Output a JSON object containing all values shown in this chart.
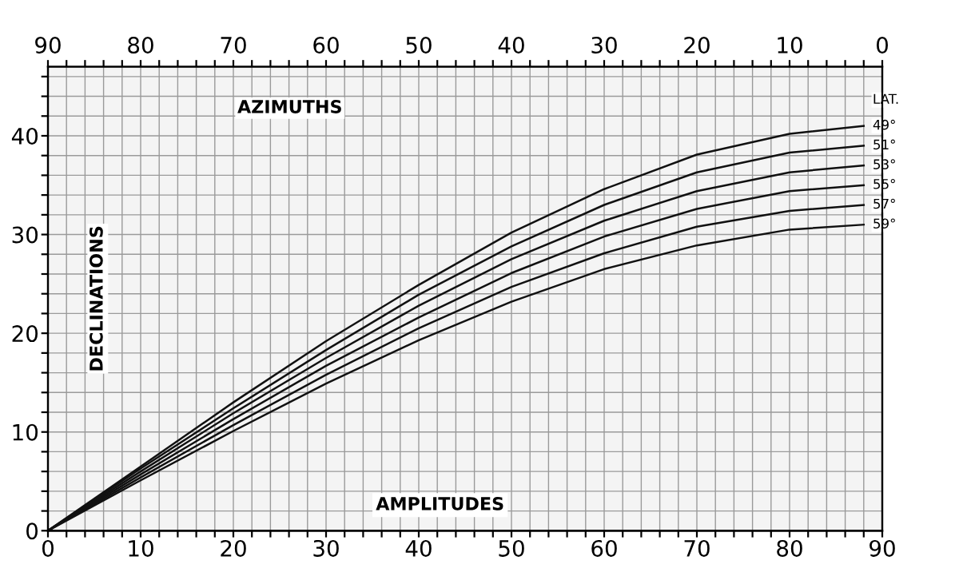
{
  "chart_data": {
    "type": "line",
    "xlabel": "AMPLITUDES",
    "ylabel": "DECLINATIONS",
    "x2label": "AZIMUTHS",
    "legend_title": "LAT.",
    "x": [
      0,
      10,
      20,
      30,
      40,
      50,
      60,
      70,
      80,
      88
    ],
    "series": [
      {
        "name": "49°",
        "color": "#111111",
        "values": [
          0,
          6.5,
          13.0,
          19.2,
          24.9,
          30.2,
          34.6,
          38.1,
          40.2,
          41.0
        ]
      },
      {
        "name": "51°",
        "color": "#111111",
        "values": [
          0,
          6.3,
          12.4,
          18.3,
          23.9,
          28.8,
          33.0,
          36.3,
          38.3,
          39.0
        ]
      },
      {
        "name": "53°",
        "color": "#111111",
        "values": [
          0,
          6.0,
          11.9,
          17.5,
          22.8,
          27.5,
          31.4,
          34.4,
          36.3,
          37.0
        ]
      },
      {
        "name": "55°",
        "color": "#111111",
        "values": [
          0,
          5.7,
          11.3,
          16.7,
          21.6,
          26.1,
          29.8,
          32.6,
          34.4,
          35.0
        ]
      },
      {
        "name": "57°",
        "color": "#111111",
        "values": [
          0,
          5.4,
          10.7,
          15.8,
          20.5,
          24.7,
          28.1,
          30.8,
          32.4,
          33.0
        ]
      },
      {
        "name": "59°",
        "color": "#111111",
        "values": [
          0,
          5.1,
          10.1,
          14.9,
          19.3,
          23.2,
          26.5,
          28.9,
          30.5,
          31.0
        ]
      }
    ],
    "xlim": [
      0,
      90
    ],
    "ylim": [
      0,
      47
    ],
    "x2lim": [
      90,
      0
    ],
    "xticks": [
      0,
      {
        "value": 2,
        "label": null
      },
      {
        "value": 4,
        "label": null
      },
      {
        "value": 6,
        "label": null
      },
      {
        "value": 8,
        "label": null
      },
      10,
      {
        "value": 12,
        "label": null
      },
      {
        "value": 14,
        "label": null
      },
      {
        "value": 16,
        "label": null
      },
      {
        "value": 18,
        "label": null
      },
      20,
      {
        "value": 22,
        "label": null
      },
      {
        "value": 24,
        "label": null
      },
      {
        "value": 26,
        "label": null
      },
      {
        "value": 28,
        "label": null
      },
      30,
      {
        "value": 32,
        "label": null
      },
      {
        "value": 34,
        "label": null
      },
      {
        "value": 36,
        "label": null
      },
      {
        "value": 38,
        "label": null
      },
      40,
      {
        "value": 42,
        "label": null
      },
      {
        "value": 44,
        "label": null
      },
      {
        "value": 46,
        "label": null
      },
      {
        "value": 48,
        "label": null
      },
      50,
      {
        "value": 52,
        "label": null
      },
      {
        "value": 54,
        "label": null
      },
      {
        "value": 56,
        "label": null
      },
      {
        "value": 58,
        "label": null
      },
      60,
      {
        "value": 62,
        "label": null
      },
      {
        "value": 64,
        "label": null
      },
      {
        "value": 66,
        "label": null
      },
      {
        "value": 68,
        "label": null
      },
      70,
      {
        "value": 72,
        "label": null
      },
      {
        "value": 74,
        "label": null
      },
      {
        "value": 76,
        "label": null
      },
      {
        "value": 78,
        "label": null
      },
      80,
      {
        "value": 82,
        "label": null
      },
      {
        "value": 84,
        "label": null
      },
      {
        "value": 86,
        "label": null
      },
      {
        "value": 88,
        "label": null
      },
      90
    ],
    "x2ticks": [
      90,
      {
        "value": 88,
        "label": null
      },
      {
        "value": 86,
        "label": null
      },
      {
        "value": 84,
        "label": null
      },
      {
        "value": 82,
        "label": null
      },
      80,
      {
        "value": 78,
        "label": null
      },
      {
        "value": 76,
        "label": null
      },
      {
        "value": 74,
        "label": null
      },
      {
        "value": 72,
        "label": null
      },
      70,
      {
        "value": 68,
        "label": null
      },
      {
        "value": 66,
        "label": null
      },
      {
        "value": 64,
        "label": null
      },
      {
        "value": 62,
        "label": null
      },
      60,
      {
        "value": 58,
        "label": null
      },
      {
        "value": 56,
        "label": null
      },
      {
        "value": 54,
        "label": null
      },
      {
        "value": 52,
        "label": null
      },
      50,
      {
        "value": 48,
        "label": null
      },
      {
        "value": 46,
        "label": null
      },
      {
        "value": 44,
        "label": null
      },
      {
        "value": 42,
        "label": null
      },
      40,
      {
        "value": 38,
        "label": null
      },
      {
        "value": 36,
        "label": null
      },
      {
        "value": 34,
        "label": null
      },
      {
        "value": 32,
        "label": null
      },
      30,
      {
        "value": 28,
        "label": null
      },
      {
        "value": 26,
        "label": null
      },
      {
        "value": 24,
        "label": null
      },
      {
        "value": 22,
        "label": null
      },
      20,
      {
        "value": 18,
        "label": null
      },
      {
        "value": 16,
        "label": null
      },
      {
        "value": 14,
        "label": null
      },
      {
        "value": 12,
        "label": null
      },
      10,
      {
        "value": 8,
        "label": null
      },
      {
        "value": 6,
        "label": null
      },
      {
        "value": 4,
        "label": null
      },
      {
        "value": 2,
        "label": null
      },
      0
    ],
    "yticks": [
      0,
      {
        "value": 2,
        "label": null
      },
      {
        "value": 4,
        "label": null
      },
      {
        "value": 6,
        "label": null
      },
      {
        "value": 8,
        "label": null
      },
      10,
      {
        "value": 12,
        "label": null
      },
      {
        "value": 14,
        "label": null
      },
      {
        "value": 16,
        "label": null
      },
      {
        "value": 18,
        "label": null
      },
      20,
      {
        "value": 22,
        "label": null
      },
      {
        "value": 24,
        "label": null
      },
      {
        "value": 26,
        "label": null
      },
      {
        "value": 28,
        "label": null
      },
      30,
      {
        "value": 32,
        "label": null
      },
      {
        "value": 34,
        "label": null
      },
      {
        "value": 36,
        "label": null
      },
      {
        "value": 38,
        "label": null
      },
      40,
      {
        "value": 42,
        "label": null
      },
      {
        "value": 44,
        "label": null
      },
      {
        "value": 46,
        "label": null
      }
    ],
    "grid": true,
    "legend": false,
    "marker": "none",
    "line_style": "solid"
  }
}
